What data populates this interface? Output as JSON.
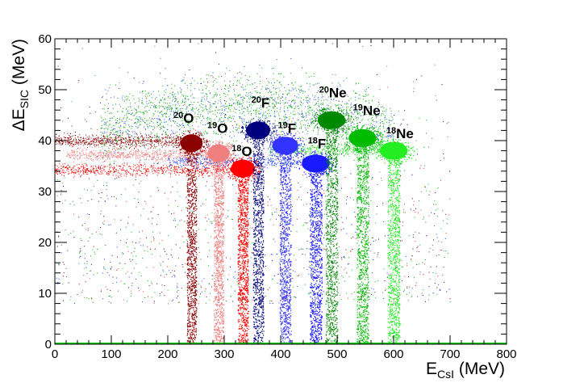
{
  "chart_data": {
    "type": "scatter",
    "title": "",
    "xlabel_main": "E",
    "xlabel_sub": "CsI",
    "xlabel_unit": " (MeV)",
    "ylabel_main": "ΔE",
    "ylabel_sub": "SIC",
    "ylabel_unit": " (MeV)",
    "xlim": [
      0,
      800
    ],
    "ylim": [
      0,
      60
    ],
    "xticks": [
      "0",
      "100",
      "200",
      "300",
      "400",
      "500",
      "600",
      "700",
      "800"
    ],
    "yticks": [
      "0",
      "10",
      "20",
      "30",
      "40",
      "50",
      "60"
    ],
    "grid": false,
    "isotopes": [
      {
        "mass": "20",
        "element": "O",
        "color": "#8b0000",
        "band_x": 242,
        "band_width": 12,
        "blob_x": 242,
        "blob_y": 39.5,
        "label_x": 210,
        "label_y": 43.5
      },
      {
        "mass": "19",
        "element": "O",
        "color": "#f08080",
        "band_x": 290,
        "band_width": 12,
        "blob_x": 290,
        "blob_y": 37.5,
        "label_x": 270,
        "label_y": 41.5
      },
      {
        "mass": "18",
        "element": "O",
        "color": "#ff0000",
        "band_x": 333,
        "band_width": 13,
        "blob_x": 333,
        "blob_y": 34.5,
        "label_x": 313,
        "label_y": 37.0
      },
      {
        "mass": "20",
        "element": "F",
        "color": "#00007f",
        "band_x": 360,
        "band_width": 13,
        "blob_x": 360,
        "blob_y": 42.0,
        "label_x": 348,
        "label_y": 46.5
      },
      {
        "mass": "19",
        "element": "F",
        "color": "#3333ff",
        "band_x": 408,
        "band_width": 14,
        "blob_x": 408,
        "blob_y": 39.0,
        "label_x": 395,
        "label_y": 41.5
      },
      {
        "mass": "18",
        "element": "F",
        "color": "#1a1aff",
        "band_x": 462,
        "band_width": 15,
        "blob_x": 462,
        "blob_y": 35.5,
        "label_x": 448,
        "label_y": 38.5
      },
      {
        "mass": "20",
        "element": "Ne",
        "color": "#008800",
        "band_x": 490,
        "band_width": 15,
        "blob_x": 490,
        "blob_y": 44.0,
        "label_x": 468,
        "label_y": 48.5
      },
      {
        "mass": "19",
        "element": "Ne",
        "color": "#00bb00",
        "band_x": 545,
        "band_width": 15,
        "blob_x": 545,
        "blob_y": 40.5,
        "label_x": 528,
        "label_y": 45.0
      },
      {
        "mass": "18",
        "element": "Ne",
        "color": "#22ee22",
        "band_x": 600,
        "band_width": 15,
        "blob_x": 600,
        "blob_y": 38.0,
        "label_x": 587,
        "label_y": 40.5
      }
    ]
  }
}
